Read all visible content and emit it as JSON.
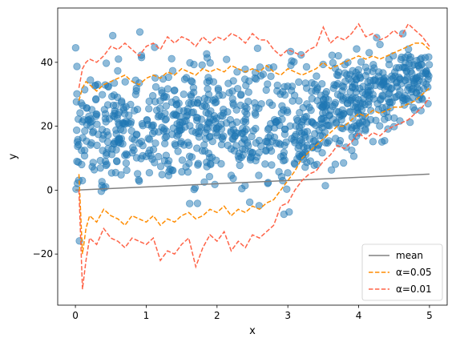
{
  "chart_data": {
    "type": "scatter",
    "xlabel": "x",
    "ylabel": "y",
    "xlim": [
      -0.25,
      5.25
    ],
    "ylim": [
      -36,
      57
    ],
    "xticks": [
      0,
      1,
      2,
      3,
      4,
      5
    ],
    "yticks": [
      -20,
      0,
      20,
      40
    ],
    "grid": false,
    "legend_position": "lower-right",
    "scatter": {
      "color": "#1f77b4",
      "n": 1000,
      "description_points_sampled": true
    },
    "series": [
      {
        "name": "mean",
        "style": "solid",
        "color": "#808080",
        "x": [
          0,
          5
        ],
        "y": [
          0,
          5
        ]
      },
      {
        "name": "α=0.05",
        "style": "dashed",
        "color": "#ff8c00",
        "x": [
          0.05,
          0.1,
          0.15,
          0.2,
          0.3,
          0.4,
          0.5,
          0.6,
          0.7,
          0.8,
          0.9,
          1.0,
          1.1,
          1.2,
          1.3,
          1.4,
          1.5,
          1.6,
          1.7,
          1.8,
          1.9,
          2.0,
          2.1,
          2.2,
          2.3,
          2.4,
          2.5,
          2.6,
          2.7,
          2.8,
          2.9,
          3.0,
          3.1,
          3.2,
          3.3,
          3.4,
          3.5,
          3.6,
          3.7,
          3.8,
          3.9,
          4.0,
          4.1,
          4.2,
          4.3,
          4.4,
          4.5,
          4.6,
          4.7,
          4.8,
          4.9,
          5.0
        ],
        "upper": [
          28,
          32,
          34,
          33,
          31,
          33,
          34,
          35,
          36,
          34,
          33,
          35,
          36,
          35,
          37,
          36,
          38,
          37,
          36,
          38,
          37,
          38,
          37,
          39,
          38,
          37,
          38,
          37,
          39,
          37,
          36,
          38,
          37,
          36,
          37,
          38,
          40,
          38,
          39,
          40,
          41,
          42,
          41,
          42,
          41,
          42,
          43,
          44,
          45,
          46,
          46,
          44
        ],
        "lower": [
          5,
          -20,
          -12,
          -8,
          -10,
          -6,
          -8,
          -9,
          -11,
          -8,
          -9,
          -10,
          -8,
          -11,
          -9,
          -10,
          -8,
          -7,
          -9,
          -8,
          -6,
          -7,
          -5,
          -8,
          -6,
          -7,
          -5,
          -6,
          -4,
          -3,
          0,
          3,
          6,
          10,
          12,
          14,
          16,
          18,
          20,
          20,
          22,
          24,
          23,
          25,
          24,
          25,
          26,
          26,
          27,
          28,
          30,
          32
        ]
      },
      {
        "name": "α=0.01",
        "style": "dashed",
        "color": "#ff6347",
        "x": [
          0.05,
          0.1,
          0.15,
          0.2,
          0.3,
          0.4,
          0.5,
          0.6,
          0.7,
          0.8,
          0.9,
          1.0,
          1.1,
          1.2,
          1.3,
          1.4,
          1.5,
          1.6,
          1.7,
          1.8,
          1.9,
          2.0,
          2.1,
          2.2,
          2.3,
          2.4,
          2.5,
          2.6,
          2.7,
          2.8,
          2.9,
          3.0,
          3.1,
          3.2,
          3.3,
          3.4,
          3.5,
          3.6,
          3.7,
          3.8,
          3.9,
          4.0,
          4.1,
          4.2,
          4.3,
          4.4,
          4.5,
          4.6,
          4.7,
          4.8,
          4.9,
          5.0
        ],
        "upper": [
          32,
          38,
          40,
          41,
          40,
          42,
          45,
          44,
          46,
          44,
          42,
          45,
          46,
          44,
          48,
          46,
          48,
          47,
          45,
          48,
          46,
          48,
          47,
          49,
          48,
          46,
          49,
          47,
          47,
          44,
          42,
          44,
          43,
          42,
          44,
          45,
          51,
          46,
          48,
          47,
          49,
          52,
          48,
          49,
          47,
          48,
          50,
          48,
          52,
          50,
          48,
          45
        ],
        "lower": [
          0,
          -31,
          -22,
          -15,
          -17,
          -12,
          -15,
          -16,
          -18,
          -15,
          -16,
          -17,
          -15,
          -22,
          -19,
          -20,
          -17,
          -15,
          -24,
          -18,
          -14,
          -16,
          -13,
          -19,
          -16,
          -18,
          -14,
          -15,
          -13,
          -11,
          -5,
          -4,
          0,
          3,
          5,
          6,
          9,
          11,
          14,
          13,
          15,
          18,
          16,
          18,
          17,
          19,
          20,
          21,
          22,
          24,
          26,
          29
        ]
      }
    ],
    "legend": [
      "mean",
      "α=0.05",
      "α=0.01"
    ]
  }
}
